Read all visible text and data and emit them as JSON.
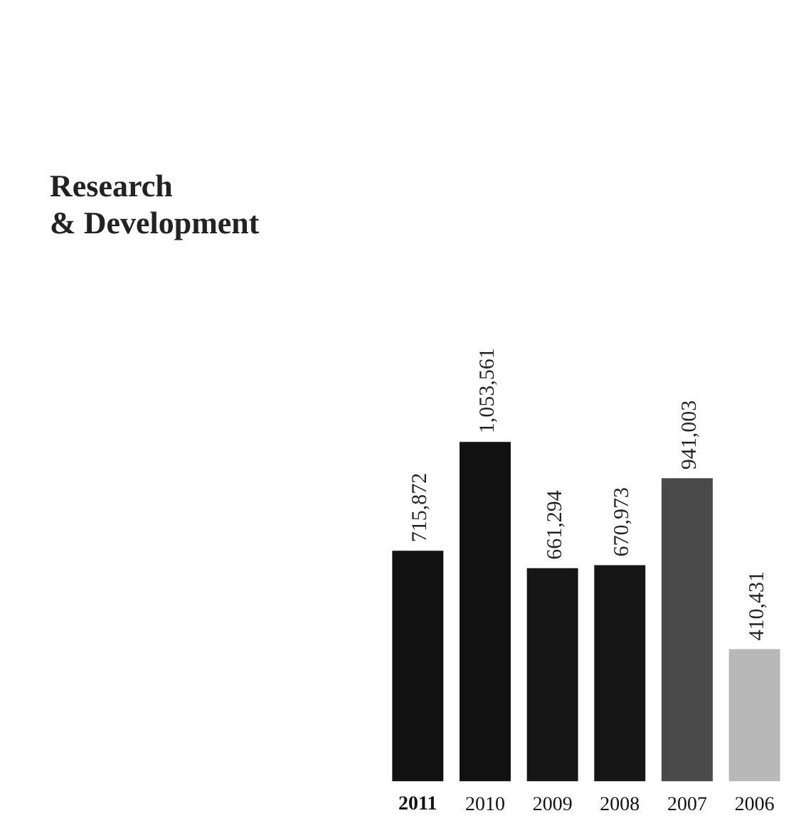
{
  "chart_data": {
    "type": "bar",
    "title": "Research\n& Development",
    "categories": [
      "2011",
      "2010",
      "2009",
      "2008",
      "2007",
      "2006"
    ],
    "values": [
      715872,
      1053561,
      661294,
      670973,
      941003,
      410431
    ],
    "colors": [
      "#111111",
      "#111111",
      "#161616",
      "#161616",
      "#4a4a4a",
      "#b8b8b8"
    ],
    "value_labels": [
      "715,872",
      "1,053,561",
      "661,294",
      "670,973",
      "941,003",
      "410,431"
    ],
    "grid": false,
    "legend": false
  }
}
